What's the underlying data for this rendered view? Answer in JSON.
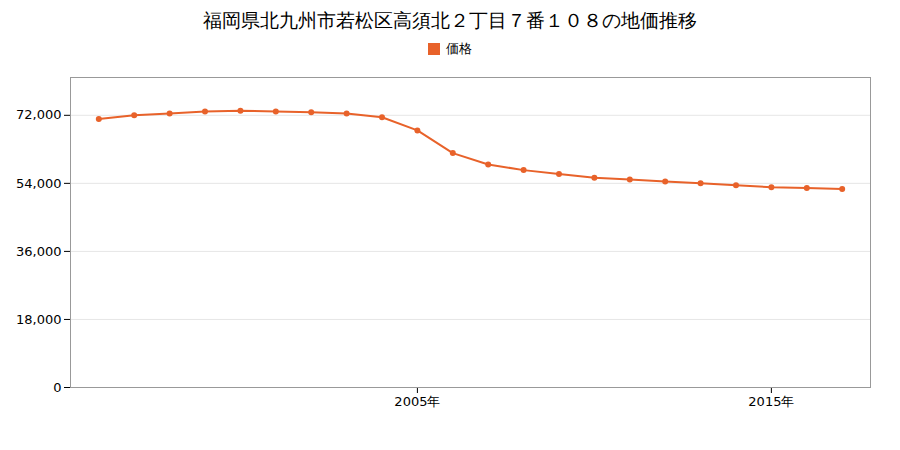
{
  "chart_data": {
    "type": "line",
    "title": "福岡県北九州市若松区高須北２丁目７番１０８の地価推移",
    "x": [
      1996,
      1997,
      1998,
      1999,
      2000,
      2001,
      2002,
      2003,
      2004,
      2005,
      2006,
      2007,
      2008,
      2009,
      2010,
      2011,
      2012,
      2013,
      2014,
      2015,
      2016,
      2017
    ],
    "series": [
      {
        "name": "価格",
        "color": "#e8622a",
        "marker": "circle",
        "values": [
          71000,
          72000,
          72500,
          73000,
          73200,
          73000,
          72800,
          72500,
          71500,
          68000,
          62000,
          59000,
          57500,
          56500,
          55500,
          55000,
          54500,
          54000,
          53500,
          53000,
          52800,
          52500
        ]
      }
    ],
    "xlim": [
      1995.2,
      2017.8
    ],
    "xticks": [
      {
        "value": 2005,
        "label": "2005年"
      },
      {
        "value": 2015,
        "label": "2015年"
      }
    ],
    "ylim": [
      0,
      82000
    ],
    "yticks": [
      0,
      {
        "value": 18000,
        "label": "18,000"
      },
      {
        "value": 36000,
        "label": "36,000"
      },
      {
        "value": 54000,
        "label": "54,000"
      },
      {
        "value": 72000,
        "label": "72,000"
      }
    ],
    "grid": "y",
    "legend": "top"
  }
}
